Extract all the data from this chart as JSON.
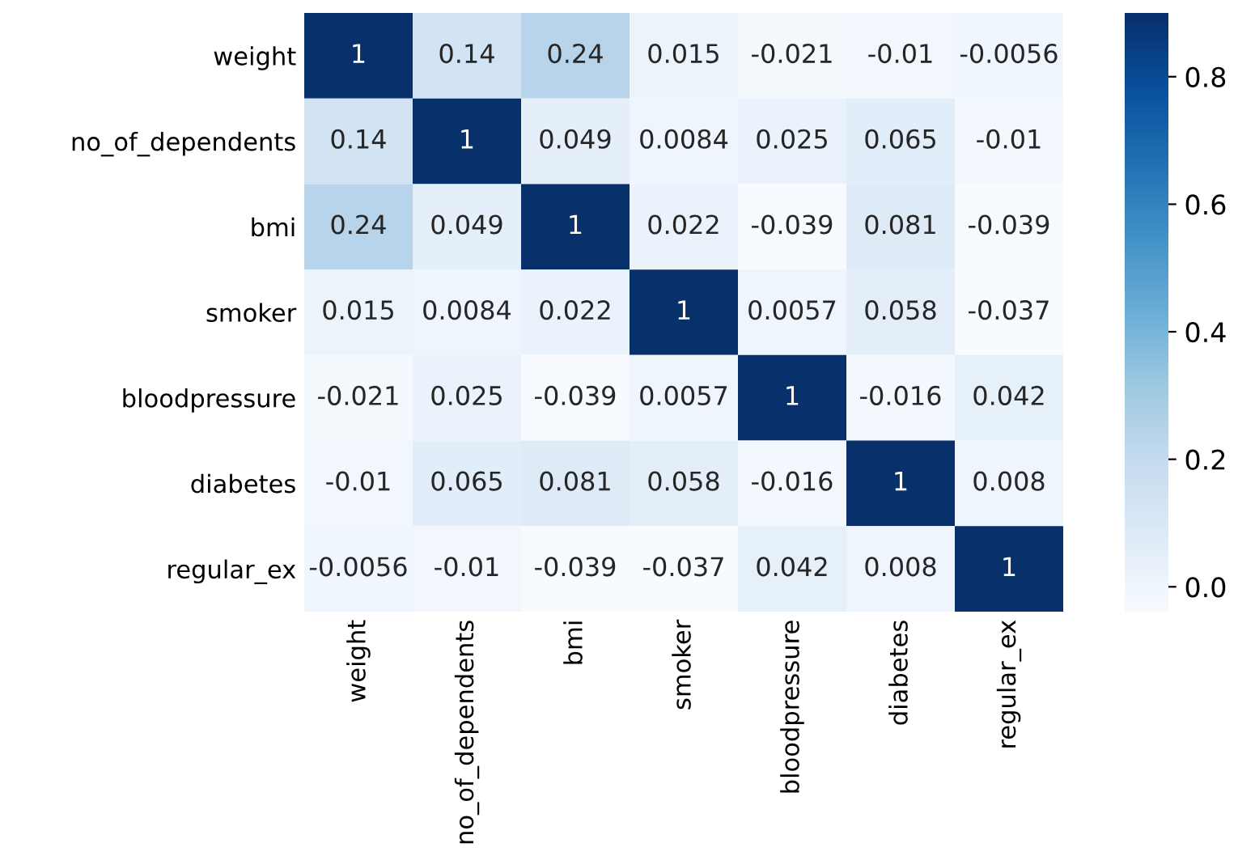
{
  "chart_data": {
    "type": "heatmap",
    "categories": [
      "weight",
      "no_of_dependents",
      "bmi",
      "smoker",
      "bloodpressure",
      "diabetes",
      "regular_ex"
    ],
    "y_categories": [
      "weight",
      "no_of_dependents",
      "bmi",
      "smoker",
      "bloodpressure",
      "diabetes",
      "regular_ex"
    ],
    "cells": [
      [
        1,
        0.14,
        0.24,
        0.015,
        -0.021,
        -0.01,
        -0.0056
      ],
      [
        0.14,
        1,
        0.049,
        0.0084,
        0.025,
        0.065,
        -0.01
      ],
      [
        0.24,
        0.049,
        1,
        0.022,
        -0.039,
        0.081,
        -0.039
      ],
      [
        0.015,
        0.0084,
        0.022,
        1,
        0.0057,
        0.058,
        -0.037
      ],
      [
        -0.021,
        0.025,
        -0.039,
        0.0057,
        1,
        -0.016,
        0.042
      ],
      [
        -0.01,
        0.065,
        0.081,
        0.058,
        -0.016,
        1,
        0.008
      ],
      [
        -0.0056,
        -0.01,
        -0.039,
        -0.037,
        0.042,
        0.008,
        1
      ]
    ],
    "clim": [
      -0.039,
      0.9
    ],
    "cticks": [
      {
        "value": 0,
        "label": "0.0"
      },
      0.2,
      0.4,
      0.6,
      0.8
    ],
    "data_labels": true
  }
}
